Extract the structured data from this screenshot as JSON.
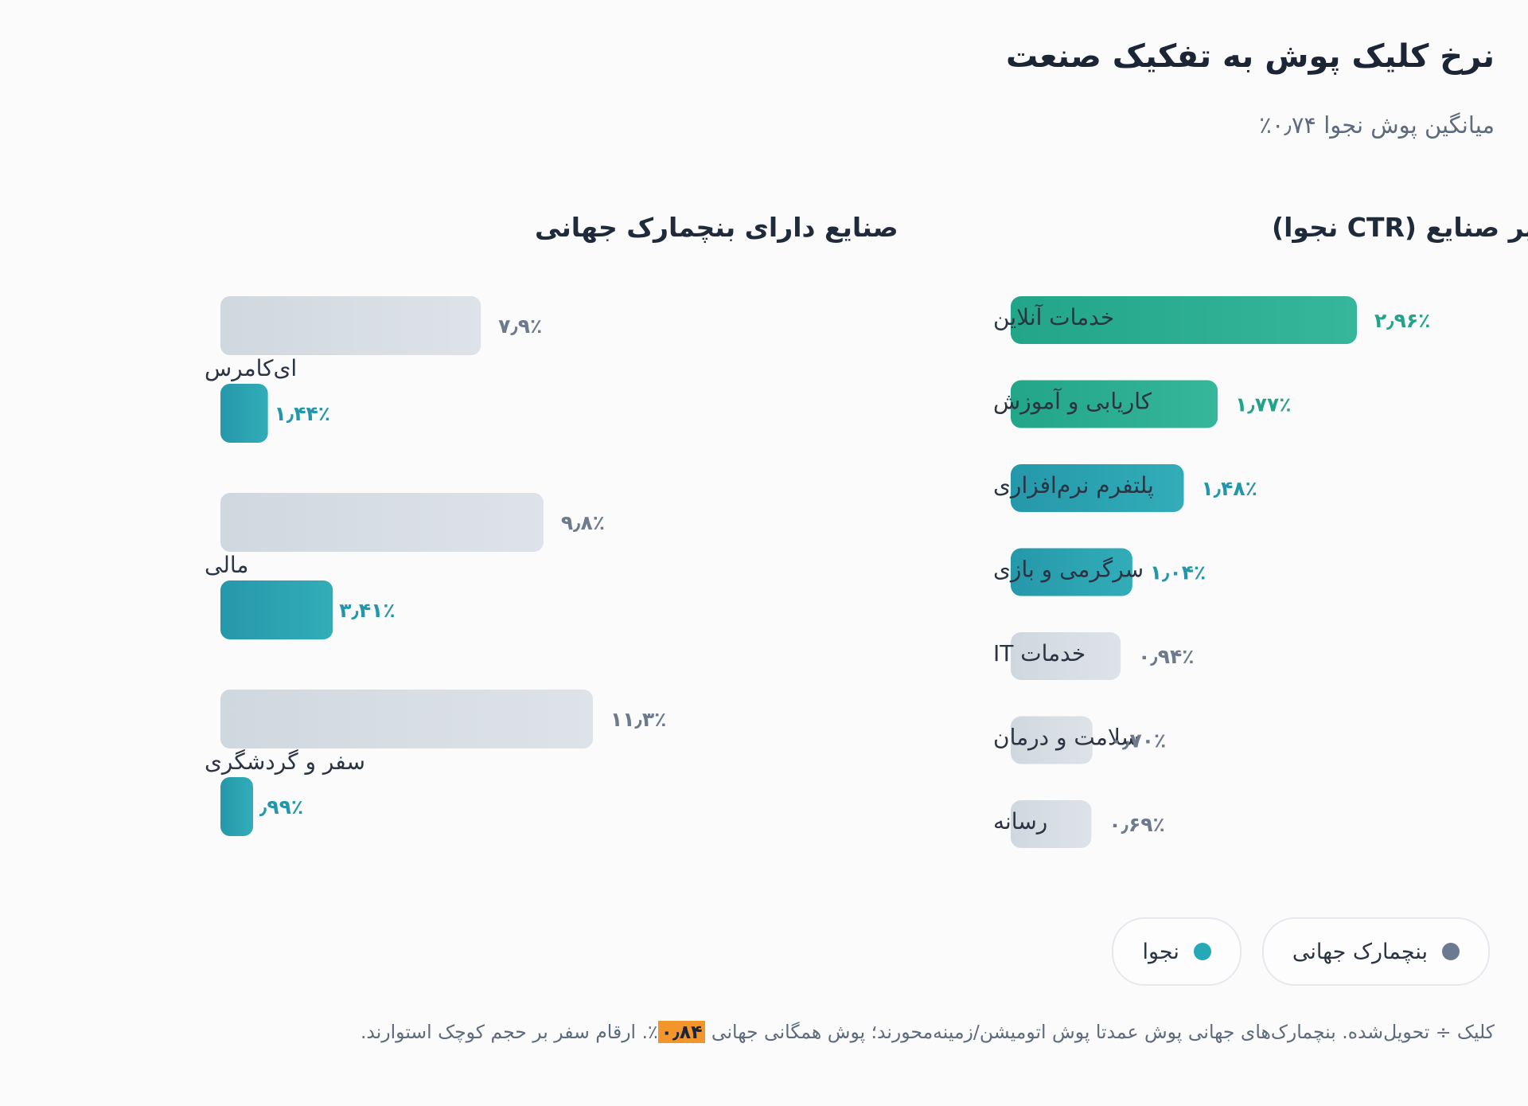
{
  "title": "نرخ کلیک پوش به تفکیک صنعت",
  "subtitle": "میانگین پوش نجوا ۰٫۷۴٪",
  "chart_data": [
    {
      "type": "bar",
      "orientation": "horizontal",
      "title": "سایر صنایع (CTR نجوا)",
      "categories": [
        "خدمات آنلاین",
        "کاریابی و آموزش",
        "پلتفرم نرم‌افزاری",
        "سرگرمی و بازی",
        "خدمات IT",
        "سلامت و درمان",
        "رسانه"
      ],
      "series": [
        {
          "values": [
            2.96,
            1.77,
            1.48,
            1.04,
            0.94,
            0.7,
            0.69
          ],
          "value_labels": [
            "۲٫۹۶٪",
            "۱٫۷۷٪",
            "۱٫۴۸٪",
            "۱٫۰۴٪",
            "۰٫۹۴٪",
            "۰٫۷۰٪",
            "۰٫۶۹٪"
          ]
        }
      ],
      "bar_colors": [
        "#2bae94",
        "#2aa78f",
        "#2a9fb0",
        "#2a9fb0",
        "#d5dde4",
        "#d5dde4",
        "#d5dde4"
      ],
      "label_colors": [
        "#23a489",
        "#23a489",
        "#2396ab",
        "#2396ab",
        "#6c7a8c",
        "#6c7a8c",
        "#6c7a8c"
      ],
      "xlim": [
        0,
        3.2
      ],
      "grid": false
    },
    {
      "type": "bar",
      "orientation": "horizontal",
      "title": "صنایع دارای بنچمارک جهانی",
      "categories": [
        "ای‌کامرس",
        "مالی",
        "سفر و گردشگری"
      ],
      "series": [
        {
          "name": "بنچمارک جهانی",
          "values": [
            7.9,
            9.8,
            11.3
          ],
          "value_labels": [
            "۷٫۹٪",
            "۹٫۸٪",
            "۱۱٫۳٪"
          ],
          "color": "#d5dde4"
        },
        {
          "name": "نجوا",
          "values": [
            1.44,
            3.41,
            0.99
          ],
          "value_labels": [
            "۱٫۴۴٪",
            "۳٫۴۱٪",
            "٫۹۹٪"
          ],
          "color": "#29a3b0"
        }
      ],
      "xlim": [
        0,
        11.3
      ],
      "grid": false
    }
  ],
  "legend": [
    {
      "label": "بنچمارک جهانی",
      "color": "#6b7a90"
    },
    {
      "label": "نجوا",
      "color": "#25a9b6"
    }
  ],
  "footnote": {
    "before": "کلیک ÷ تحویل‌شده. بنچمارک‌های جهانی پوش عمدتا پوش اتومیشن/زمینه‌محورند؛ پوش همگانی جهانی ",
    "highlight": "۰٫۸۴",
    "after": "٪. ارقام سفر بر حجم کوچک استوارند."
  }
}
